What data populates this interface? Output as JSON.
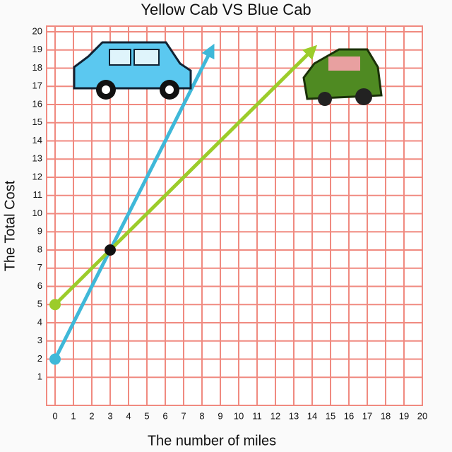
{
  "chart_data": {
    "type": "line",
    "title": "Yellow Cab VS Blue Cab",
    "x_label": "The number of miles",
    "y_label": "The Total Cost",
    "series": [
      {
        "color": "#3fb8d8",
        "x": [
          0,
          3,
          8.5
        ],
        "values": [
          2,
          8,
          19
        ]
      },
      {
        "color": "#9ccc2a",
        "x": [
          0,
          3,
          14
        ],
        "values": [
          5,
          8,
          19
        ]
      }
    ],
    "marker": {
      "x": 3,
      "y": 8,
      "color": "#111111"
    },
    "xlim": [
      0,
      20
    ],
    "ylim": [
      0,
      20
    ],
    "xticks": [
      0,
      1,
      2,
      3,
      4,
      5,
      6,
      7,
      8,
      9,
      10,
      11,
      12,
      13,
      14,
      15,
      16,
      17,
      18,
      19,
      20
    ],
    "yticks": [
      1,
      2,
      3,
      4,
      5,
      6,
      7,
      8,
      9,
      10,
      11,
      12,
      13,
      14,
      15,
      16,
      17,
      18,
      19,
      20
    ],
    "grid": true,
    "grid_color": "#f08a80"
  }
}
